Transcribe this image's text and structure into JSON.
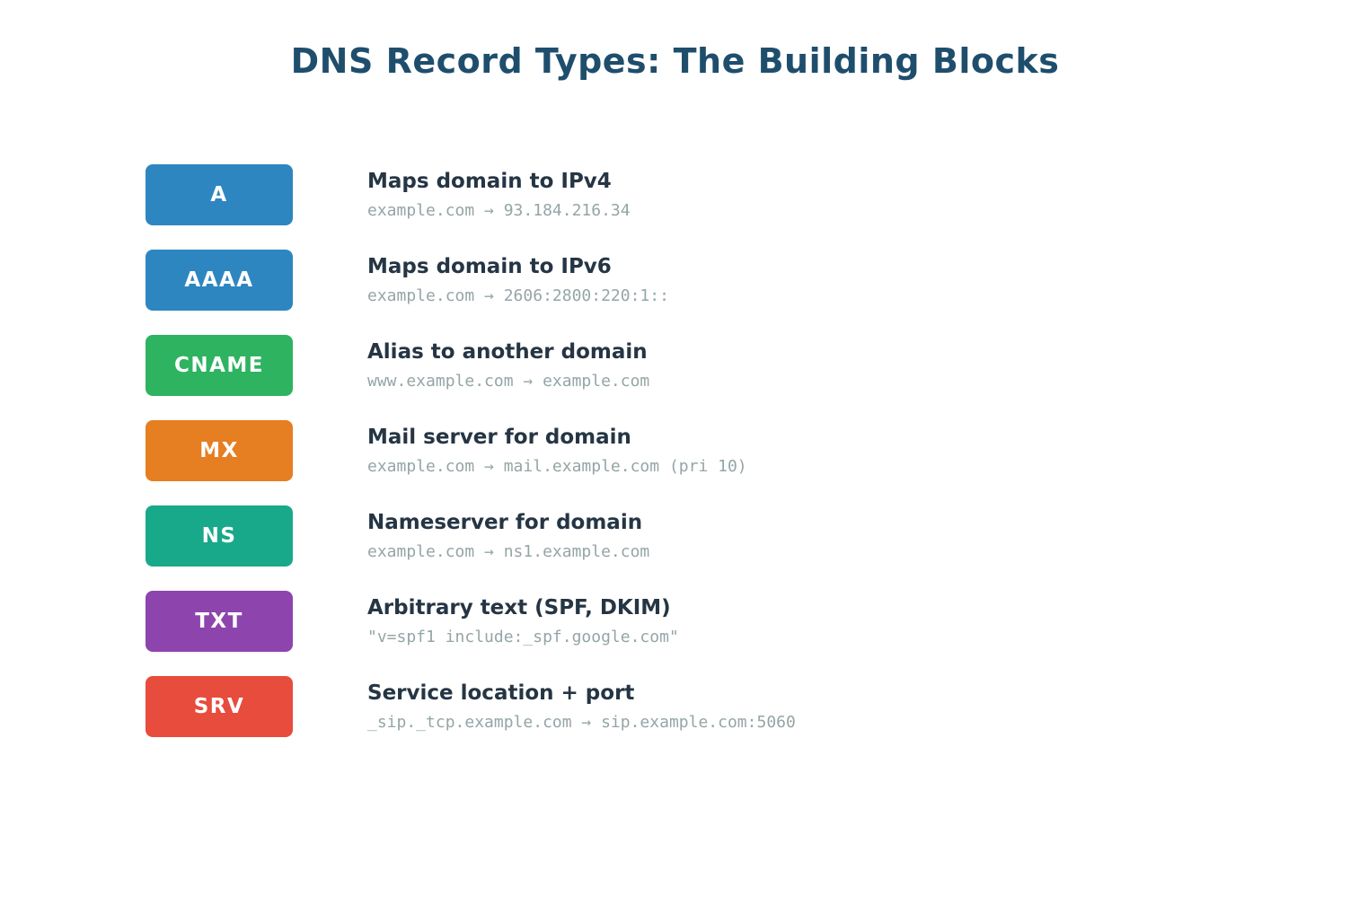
{
  "title": "DNS Record Types: The Building Blocks",
  "colors": {
    "background": "#FFFFFF",
    "title": "#1F4E6D",
    "heading": "#253544",
    "example": "#95A5A6",
    "badge_text": "#FFFFFF"
  },
  "records": [
    {
      "type": "A",
      "color": "#2E86C1",
      "description": "Maps domain to IPv4",
      "example": "example.com → 93.184.216.34"
    },
    {
      "type": "AAAA",
      "color": "#2E86C1",
      "description": "Maps domain to IPv6",
      "example": "example.com → 2606:2800:220:1::"
    },
    {
      "type": "CNAME",
      "color": "#2EB360",
      "description": "Alias to another domain",
      "example": "www.example.com → example.com"
    },
    {
      "type": "MX",
      "color": "#E67E22",
      "description": "Mail server for domain",
      "example": "example.com → mail.example.com (pri 10)"
    },
    {
      "type": "NS",
      "color": "#18A98A",
      "description": "Nameserver for domain",
      "example": "example.com → ns1.example.com"
    },
    {
      "type": "TXT",
      "color": "#8E44AD",
      "description": "Arbitrary text (SPF, DKIM)",
      "example": "\"v=spf1 include:_spf.google.com\""
    },
    {
      "type": "SRV",
      "color": "#E74C3C",
      "description": "Service location + port",
      "example": "_sip._tcp.example.com → sip.example.com:5060"
    }
  ]
}
